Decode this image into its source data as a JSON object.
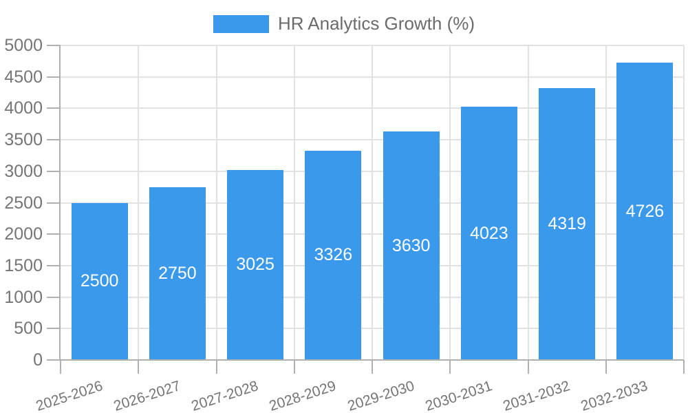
{
  "legend": {
    "label": "HR Analytics Growth (%)"
  },
  "chart_data": {
    "type": "bar",
    "title": "",
    "categories": [
      "2025-2026",
      "2026-2027",
      "2027-2028",
      "2028-2029",
      "2029-2030",
      "2030-2031",
      "2031-2032",
      "2032-2033"
    ],
    "series": [
      {
        "name": "HR Analytics Growth (%)",
        "values": [
          2500,
          2750,
          3025,
          3326,
          3630,
          4023,
          4319,
          4726
        ]
      }
    ],
    "value_labels": [
      "2500",
      "2750",
      "3025",
      "3326",
      "3630",
      "4023",
      "4319",
      "4726"
    ],
    "ytick_labels": [
      "0",
      "500",
      "1000",
      "1500",
      "2000",
      "2500",
      "3000",
      "3500",
      "4000",
      "4500",
      "5000"
    ],
    "xlabel": "",
    "ylabel": "",
    "ylim": [
      0,
      5000
    ],
    "ytick_step": 500,
    "grid": "on",
    "legend_position": "top-center",
    "value_label_placement": "inside-center",
    "colors": {
      "bar": "#3b99ec",
      "bar_label": "#ffffff",
      "axis_text": "#757575",
      "legend_text": "#6b6b6b",
      "gridline": "#e2e2e2",
      "axis_line": "#b0b0b0",
      "background": "#ffffff"
    }
  }
}
